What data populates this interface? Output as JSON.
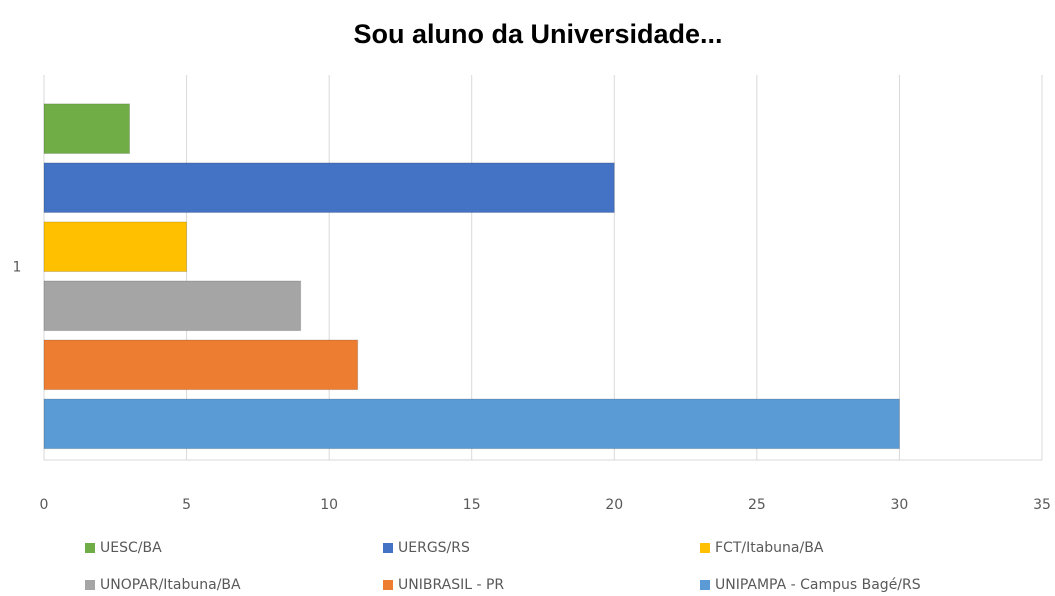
{
  "chart_data": {
    "type": "bar",
    "orientation": "horizontal",
    "title": "Sou aluno da Universidade...",
    "categories": [
      "1"
    ],
    "series": [
      {
        "name": "UESC/BA",
        "color": "#70ad47",
        "values": [
          3
        ]
      },
      {
        "name": "UERGS/RS",
        "color": "#4472c4",
        "values": [
          20
        ]
      },
      {
        "name": "FCT/Itabuna/BA",
        "color": "#ffc000",
        "values": [
          5
        ]
      },
      {
        "name": "UNOPAR/Itabuna/BA",
        "color": "#a5a5a5",
        "values": [
          9
        ]
      },
      {
        "name": "UNIBRASIL - PR",
        "color": "#ed7d31",
        "values": [
          11
        ]
      },
      {
        "name": "UNIPAMPA - Campus Bagé/RS",
        "color": "#5b9bd5",
        "values": [
          30
        ]
      }
    ],
    "xlim": [
      0,
      35
    ],
    "xticks": [
      0,
      5,
      10,
      15,
      20,
      25,
      30,
      35
    ],
    "grid": true,
    "legend": "bottom"
  }
}
